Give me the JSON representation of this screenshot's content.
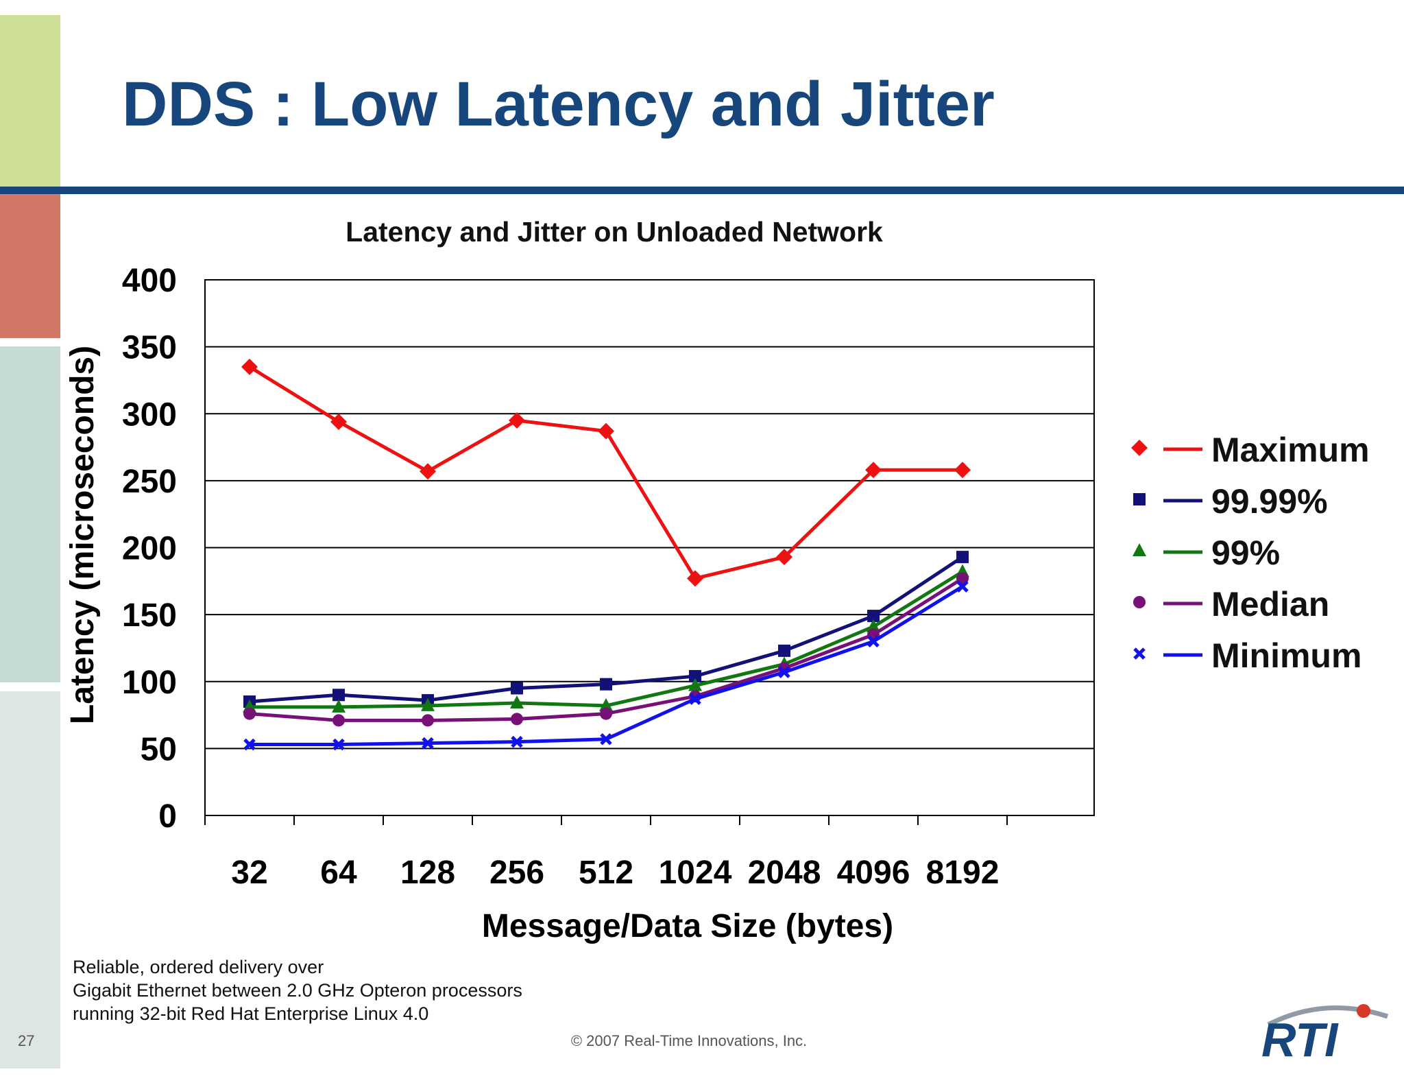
{
  "slide": {
    "title": "DDS : Low Latency and Jitter",
    "page_number": "27",
    "copyright": "© 2007 Real-Time Innovations, Inc.",
    "footnote": [
      "Reliable, ordered delivery over",
      "Gigabit Ethernet between 2.0 GHz Opteron processors",
      "running 32-bit Red Hat Enterprise Linux 4.0"
    ],
    "logo_text": "RTI"
  },
  "colors": {
    "title": "#17467d",
    "rule": "#17467d",
    "maximum": "#ee1111",
    "p9999": "#111177",
    "p99": "#117711",
    "median": "#771177",
    "minimum": "#1111ee"
  },
  "chart_data": {
    "type": "line",
    "title": "Latency and Jitter on Unloaded Network",
    "xlabel": "Message/Data Size (bytes)",
    "ylabel": "Latency (microseconds)",
    "categories": [
      "32",
      "64",
      "128",
      "256",
      "512",
      "1024",
      "2048",
      "4096",
      "8192"
    ],
    "ylim": [
      0,
      400
    ],
    "yticks": [
      0,
      50,
      100,
      150,
      200,
      250,
      300,
      350,
      400
    ],
    "grid": true,
    "legend": "right",
    "series": [
      {
        "name": "Maximum",
        "marker": "diamond",
        "color": "#ee1111",
        "values": [
          335,
          294,
          257,
          295,
          287,
          177,
          193,
          258,
          258
        ]
      },
      {
        "name": "99.99%",
        "marker": "square",
        "color": "#111177",
        "values": [
          85,
          90,
          86,
          95,
          98,
          104,
          123,
          149,
          193
        ]
      },
      {
        "name": "99%",
        "marker": "triangle",
        "color": "#117711",
        "values": [
          81,
          81,
          82,
          84,
          82,
          97,
          113,
          141,
          182
        ]
      },
      {
        "name": "Median",
        "marker": "circle",
        "color": "#771177",
        "values": [
          76,
          71,
          71,
          72,
          76,
          89,
          110,
          135,
          177
        ]
      },
      {
        "name": "Minimum",
        "marker": "x",
        "color": "#1111ee",
        "values": [
          53,
          53,
          54,
          55,
          57,
          87,
          107,
          130,
          171
        ]
      }
    ]
  }
}
